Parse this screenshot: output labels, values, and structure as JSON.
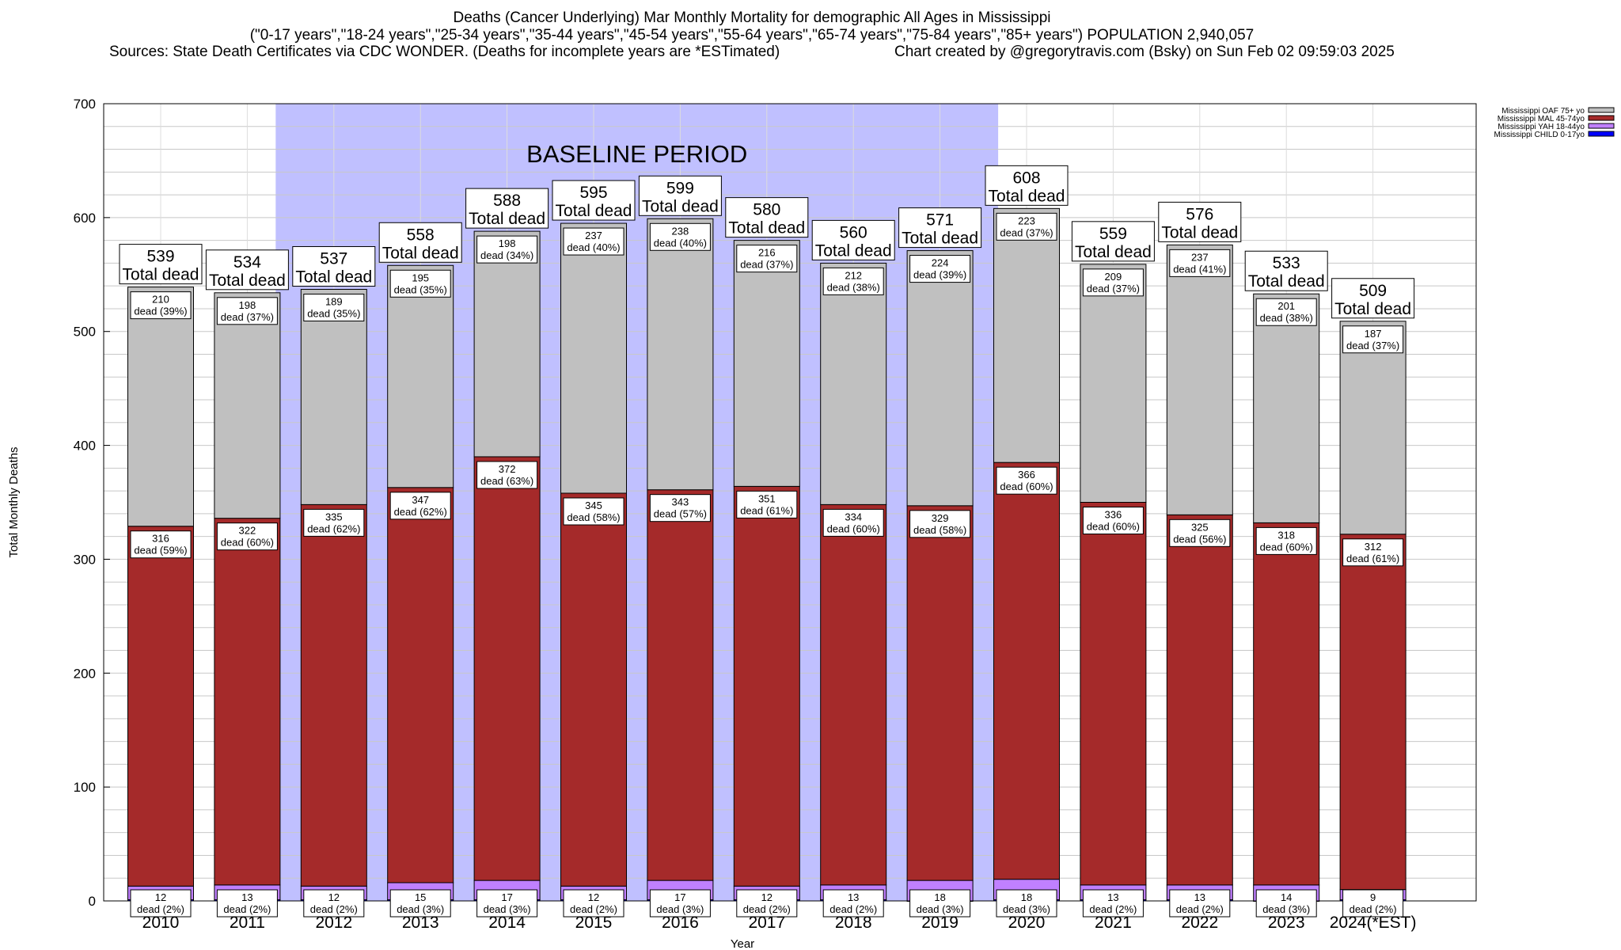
{
  "header": {
    "title": "Deaths (Cancer Underlying) Mar Monthly Mortality for demographic All Ages in Mississippi",
    "subtitle": "(\"0-17 years\",\"18-24 years\",\"25-34 years\",\"35-44 years\",\"45-54 years\",\"55-64 years\",\"65-74 years\",\"75-84 years\",\"85+ years\") POPULATION 2,940,057",
    "sources": "Sources: State Death Certificates via CDC WONDER. (Deaths for incomplete years are *ESTimated)",
    "credit": "Chart created by @gregorytravis.com (Bsky) on Sun Feb 02 09:59:03 2025"
  },
  "chart_data": {
    "type": "bar",
    "stacked": true,
    "title": "Deaths (Cancer Underlying) Mar Monthly Mortality for demographic All Ages in Mississippi",
    "xlabel": "Year",
    "ylabel": "Total Monthly Deaths",
    "ylim": [
      0,
      700
    ],
    "yticks": [
      0,
      100,
      200,
      300,
      400,
      500,
      600,
      700
    ],
    "grid": true,
    "legend_position": "top-right",
    "annotation": "BASELINE PERIOD",
    "baseline_range": [
      "2012",
      "2019"
    ],
    "total_suffix": "Total dead",
    "dead_word": "dead",
    "categories": [
      "2010",
      "2011",
      "2012",
      "2013",
      "2014",
      "2015",
      "2016",
      "2017",
      "2018",
      "2019",
      "2020",
      "2021",
      "2022",
      "2023",
      "2024(*EST)"
    ],
    "totals": [
      539,
      534,
      537,
      558,
      588,
      595,
      599,
      580,
      560,
      571,
      608,
      559,
      576,
      533,
      509
    ],
    "series": [
      {
        "name": "Mississippi CHILD 0-17yo",
        "color": "#0000ff",
        "values": [
          1,
          1,
          1,
          1,
          1,
          1,
          1,
          1,
          1,
          0,
          1,
          1,
          1,
          0,
          1
        ]
      },
      {
        "name": "Mississippi YAH 18-44yo",
        "color": "#c080ff",
        "values": [
          12,
          13,
          12,
          15,
          17,
          12,
          17,
          12,
          13,
          18,
          18,
          13,
          13,
          14,
          9
        ],
        "pct": [
          "2%",
          "2%",
          "2%",
          "3%",
          "3%",
          "2%",
          "3%",
          "2%",
          "2%",
          "3%",
          "3%",
          "2%",
          "2%",
          "3%",
          "2%"
        ]
      },
      {
        "name": "Mississippi MAL 45-74yo",
        "color": "#a52a2a",
        "values": [
          316,
          322,
          335,
          347,
          372,
          345,
          343,
          351,
          334,
          329,
          366,
          336,
          325,
          318,
          312
        ],
        "pct": [
          "59%",
          "60%",
          "62%",
          "62%",
          "63%",
          "58%",
          "57%",
          "61%",
          "60%",
          "58%",
          "60%",
          "60%",
          "56%",
          "60%",
          "61%"
        ]
      },
      {
        "name": "Mississippi OAF 75+ yo",
        "color": "#c0c0c0",
        "values": [
          210,
          198,
          189,
          195,
          198,
          237,
          238,
          216,
          212,
          224,
          223,
          209,
          237,
          201,
          187
        ],
        "pct": [
          "39%",
          "37%",
          "35%",
          "35%",
          "34%",
          "40%",
          "40%",
          "37%",
          "38%",
          "39%",
          "37%",
          "37%",
          "41%",
          "38%",
          "37%"
        ]
      }
    ]
  }
}
